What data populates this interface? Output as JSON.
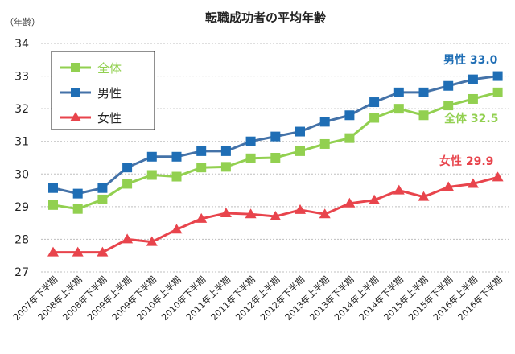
{
  "chart_data": {
    "type": "line",
    "title": "転職成功者の平均年齢",
    "ylabel": "（年齢）",
    "xlabel": "",
    "ylim": [
      27,
      34
    ],
    "yticks": [
      27,
      28,
      29,
      30,
      31,
      32,
      33,
      34
    ],
    "grid": true,
    "legend_position": "top-left",
    "categories": [
      "2007年下半期",
      "2008年上半期",
      "2008年下半期",
      "2009年上半期",
      "2009年下半期",
      "2010年上半期",
      "2010年下半期",
      "2011年上半期",
      "2011年下半期",
      "2012年上半期",
      "2012年下半期",
      "2013年上半期",
      "2013年下半期",
      "2014年上半期",
      "2014年下半期",
      "2015年上半期",
      "2015年下半期",
      "2016年上半期",
      "2016年下半期"
    ],
    "series": [
      {
        "name": "全体",
        "color": "#92d050",
        "marker": "square",
        "values": [
          29.05,
          28.93,
          29.22,
          29.7,
          29.97,
          29.92,
          30.2,
          30.22,
          30.48,
          30.5,
          30.7,
          30.92,
          31.1,
          31.72,
          32.0,
          31.8,
          32.1,
          32.3,
          32.5
        ],
        "end_label": "全体 32.5"
      },
      {
        "name": "男性",
        "color": "#1f6eb5",
        "line_color": "#4472a8",
        "marker": "square",
        "values": [
          29.57,
          29.4,
          29.57,
          30.2,
          30.53,
          30.53,
          30.7,
          30.7,
          31.0,
          31.15,
          31.3,
          31.6,
          31.8,
          32.2,
          32.5,
          32.5,
          32.7,
          32.9,
          33.0
        ],
        "end_label": "男性 33.0"
      },
      {
        "name": "女性",
        "color": "#e8444c",
        "marker": "triangle",
        "values": [
          27.6,
          27.6,
          27.6,
          28.0,
          27.92,
          28.3,
          28.63,
          28.8,
          28.77,
          28.7,
          28.9,
          28.77,
          29.1,
          29.2,
          29.5,
          29.3,
          29.6,
          29.7,
          29.9
        ],
        "end_label": "女性 29.9"
      }
    ]
  }
}
